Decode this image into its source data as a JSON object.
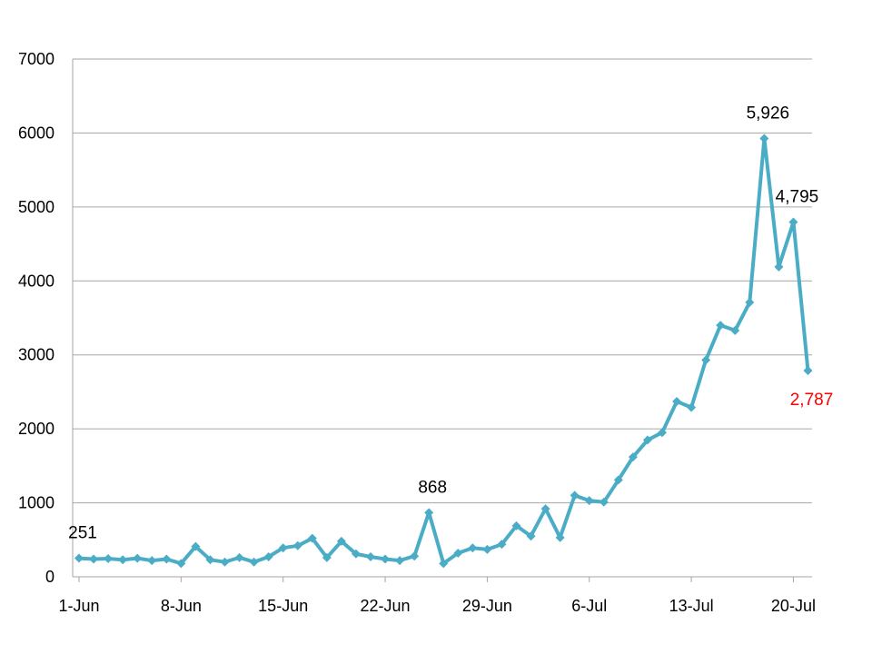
{
  "chart_data": {
    "type": "line",
    "title": "",
    "xlabel": "",
    "ylabel": "",
    "grid": true,
    "legend": "none",
    "ylim": [
      0,
      7000
    ],
    "yticks": [
      0,
      1000,
      2000,
      3000,
      4000,
      5000,
      6000,
      7000
    ],
    "x_tick_labels": [
      "1-Jun",
      "8-Jun",
      "15-Jun",
      "22-Jun",
      "29-Jun",
      "6-Jul",
      "13-Jul",
      "20-Jul"
    ],
    "colors": {
      "series": "#4bacc6",
      "label_default": "#000000",
      "label_highlight": "#ff0000"
    },
    "series": [
      {
        "x": [
          "1-Jun",
          "2-Jun",
          "3-Jun",
          "4-Jun",
          "5-Jun",
          "6-Jun",
          "7-Jun",
          "8-Jun",
          "9-Jun",
          "10-Jun",
          "11-Jun",
          "12-Jun",
          "13-Jun",
          "14-Jun",
          "15-Jun",
          "16-Jun",
          "17-Jun",
          "18-Jun",
          "19-Jun",
          "20-Jun",
          "21-Jun",
          "22-Jun",
          "23-Jun",
          "24-Jun",
          "25-Jun",
          "26-Jun",
          "27-Jun",
          "28-Jun",
          "29-Jun",
          "30-Jun",
          "1-Jul",
          "2-Jul",
          "3-Jul",
          "4-Jul",
          "5-Jul",
          "6-Jul",
          "7-Jul",
          "8-Jul",
          "9-Jul",
          "10-Jul",
          "11-Jul",
          "12-Jul",
          "13-Jul",
          "14-Jul",
          "15-Jul",
          "16-Jul",
          "17-Jul",
          "18-Jul",
          "19-Jul",
          "20-Jul",
          "21-Jul"
        ],
        "values": [
          251,
          240,
          245,
          230,
          250,
          220,
          240,
          180,
          410,
          230,
          200,
          260,
          200,
          270,
          390,
          420,
          520,
          260,
          480,
          310,
          270,
          240,
          220,
          280,
          868,
          180,
          320,
          390,
          370,
          440,
          690,
          550,
          920,
          530,
          1100,
          1030,
          1010,
          1310,
          1620,
          1850,
          1950,
          2370,
          2290,
          2930,
          3400,
          3330,
          3710,
          5926,
          4190,
          4795,
          2787
        ]
      }
    ],
    "data_labels": [
      {
        "index": 0,
        "text": "251",
        "highlight": false,
        "position": "above"
      },
      {
        "index": 24,
        "text": "868",
        "highlight": false,
        "position": "above"
      },
      {
        "index": 47,
        "text": "5,926",
        "highlight": false,
        "position": "above"
      },
      {
        "index": 49,
        "text": "4,795",
        "highlight": false,
        "position": "above"
      },
      {
        "index": 50,
        "text": "2,787",
        "highlight": true,
        "position": "below"
      }
    ]
  }
}
